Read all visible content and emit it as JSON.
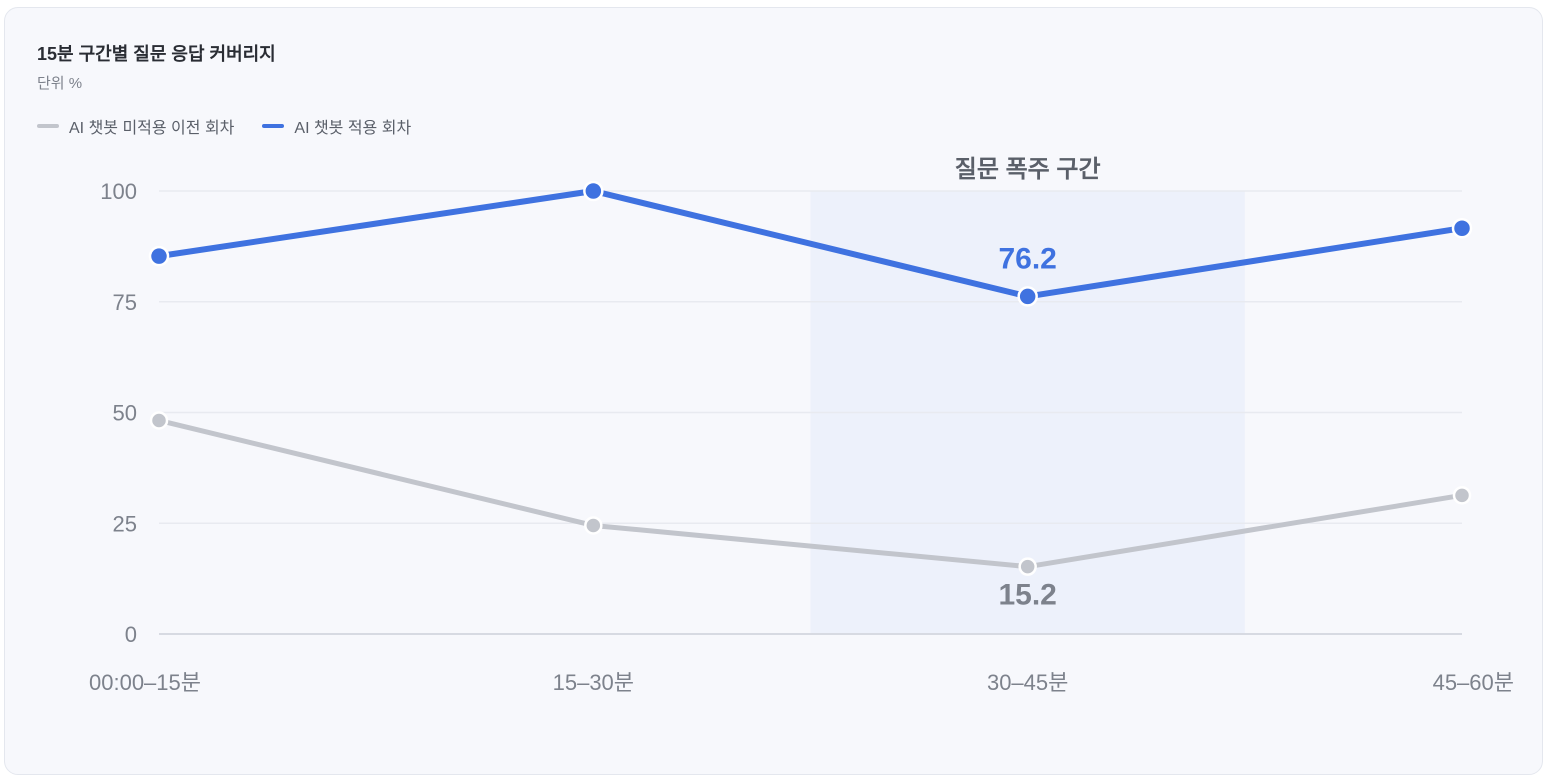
{
  "chart_data": {
    "type": "line",
    "title": "15분 구간별 질문 응답 커버리지",
    "subtitle": "단위 %",
    "categories": [
      "00:00–15분",
      "15–30분",
      "30–45분",
      "45–60분"
    ],
    "series": [
      {
        "name": "AI 챗봇 미적용 이전 회차",
        "color": "#c2c5cc",
        "values": [
          48.2,
          24.5,
          15.2,
          31.3
        ]
      },
      {
        "name": "AI 챗봇 적용 회차",
        "color": "#3f72e0",
        "values": [
          85.3,
          100,
          76.2,
          91.6
        ]
      }
    ],
    "ylim": [
      0,
      100
    ],
    "yticks": [
      0,
      25,
      50,
      75,
      100
    ],
    "grid": true,
    "legend_position": "top-left",
    "highlight_band": {
      "label": "질문 폭주 구간",
      "x_from": 1.5,
      "x_to": 2.5,
      "color": "#edf1fb"
    },
    "annotations": [
      {
        "series": 1,
        "index": 2,
        "text": "76.2",
        "placement": "above"
      },
      {
        "series": 0,
        "index": 2,
        "text": "15.2",
        "placement": "below"
      }
    ]
  }
}
